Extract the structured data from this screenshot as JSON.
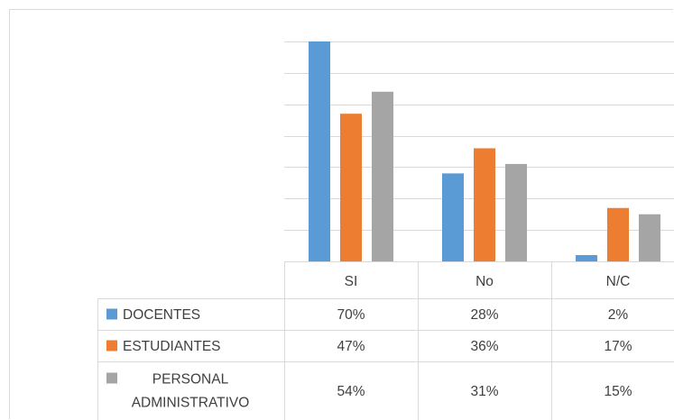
{
  "chart_data": {
    "type": "bar",
    "categories": [
      "SI",
      "No",
      "N/C"
    ],
    "series": [
      {
        "name": "DOCENTES",
        "values": [
          70,
          28,
          2
        ],
        "labels": [
          "70%",
          "28%",
          "2%"
        ],
        "color": "#5b9bd5"
      },
      {
        "name": "ESTUDIANTES",
        "values": [
          47,
          36,
          17
        ],
        "labels": [
          "47%",
          "36%",
          "17%"
        ],
        "color": "#ed7d31"
      },
      {
        "name": "PERSONAL ADMINISTRATIVO",
        "values": [
          54,
          31,
          15
        ],
        "labels": [
          "54%",
          "31%",
          "15%"
        ],
        "color": "#a5a5a5"
      }
    ],
    "ylim": [
      0,
      70
    ],
    "grid": true,
    "legend": "data-table"
  },
  "colors": {
    "gridline": "#d9d9d9",
    "table_border": "#d9d9d9",
    "text": "#404040"
  }
}
